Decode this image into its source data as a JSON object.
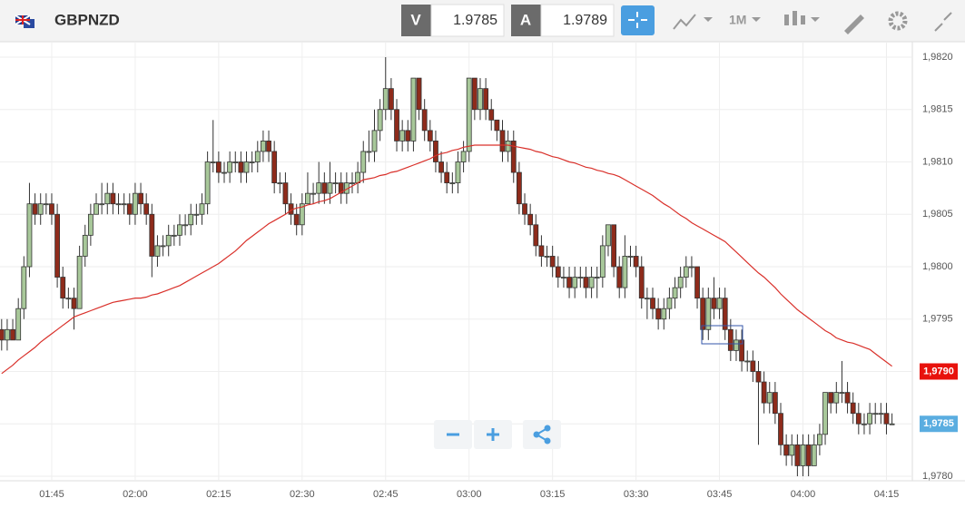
{
  "toolbar": {
    "symbol": "GBPNZD",
    "bid_label": "V",
    "bid": "1.9785",
    "ask_label": "A",
    "ask": "1.9789",
    "timeframe": "1M"
  },
  "chart_data": {
    "type": "candlestick",
    "categories": [
      null,
      null,
      null,
      null,
      null,
      null,
      null,
      null,
      null,
      "01:45",
      null,
      null,
      null,
      null,
      null,
      null,
      null,
      null,
      null,
      null,
      null,
      null,
      null,
      null,
      "02:00",
      null,
      null,
      null,
      null,
      null,
      null,
      null,
      null,
      null,
      null,
      null,
      null,
      null,
      null,
      "02:15",
      null,
      null,
      null,
      null,
      null,
      null,
      null,
      null,
      null,
      null,
      null,
      null,
      null,
      null,
      "02:30",
      null,
      null,
      null,
      null,
      null,
      null,
      null,
      null,
      null,
      null,
      null,
      null,
      null,
      null,
      "02:45",
      null,
      null,
      null,
      null,
      null,
      null,
      null,
      null,
      null,
      null,
      null,
      null,
      null,
      null,
      "03:00",
      null,
      null,
      null,
      null,
      null,
      null,
      null,
      null,
      null,
      null,
      null,
      null,
      null,
      null,
      "03:15",
      null,
      null,
      null,
      null,
      null,
      null,
      null,
      null,
      null,
      null,
      null,
      null,
      null,
      null,
      "03:30",
      null,
      null,
      null,
      null,
      null,
      null,
      null,
      null,
      null,
      null,
      null,
      null,
      null,
      null,
      "03:45",
      null,
      null,
      null,
      null,
      null,
      null,
      null,
      null,
      null,
      null,
      null,
      null,
      null,
      null,
      "04:00",
      null,
      null,
      null,
      null,
      null,
      null,
      null,
      null,
      null,
      null,
      null,
      null,
      null,
      null,
      "04:15",
      null
    ],
    "candles": [
      [
        1.9794,
        1.9795,
        1.9792,
        1.9793
      ],
      [
        1.9793,
        1.9795,
        1.9792,
        1.9794
      ],
      [
        1.9794,
        1.9795,
        1.9793,
        1.9793
      ],
      [
        1.9793,
        1.9797,
        1.9793,
        1.9796
      ],
      [
        1.9796,
        1.9801,
        1.9795,
        1.98
      ],
      [
        1.98,
        1.9808,
        1.9799,
        1.9806
      ],
      [
        1.9806,
        1.9807,
        1.9804,
        1.9805
      ],
      [
        1.9805,
        1.9807,
        1.9804,
        1.9806
      ],
      [
        1.9806,
        1.9807,
        1.9805,
        1.9806
      ],
      [
        1.9806,
        1.9807,
        1.9804,
        1.9805
      ],
      [
        1.9805,
        1.9806,
        1.9798,
        1.9799
      ],
      [
        1.9799,
        1.98,
        1.9796,
        1.9797
      ],
      [
        1.9797,
        1.9798,
        1.9796,
        1.9797
      ],
      [
        1.9797,
        1.9798,
        1.9794,
        1.9796
      ],
      [
        1.9796,
        1.9802,
        1.9796,
        1.9801
      ],
      [
        1.9801,
        1.9804,
        1.98,
        1.9803
      ],
      [
        1.9803,
        1.9806,
        1.9802,
        1.9805
      ],
      [
        1.9805,
        1.9807,
        1.9805,
        1.9806
      ],
      [
        1.9806,
        1.9808,
        1.9805,
        1.9806
      ],
      [
        1.9806,
        1.9808,
        1.9805,
        1.9807
      ],
      [
        1.9807,
        1.9808,
        1.9805,
        1.9806
      ],
      [
        1.9806,
        1.9807,
        1.9805,
        1.9806
      ],
      [
        1.9806,
        1.9807,
        1.9805,
        1.9806
      ],
      [
        1.9806,
        1.9807,
        1.9804,
        1.9805
      ],
      [
        1.9805,
        1.9808,
        1.9804,
        1.9807
      ],
      [
        1.9807,
        1.9808,
        1.9805,
        1.9806
      ],
      [
        1.9806,
        1.9807,
        1.9804,
        1.9805
      ],
      [
        1.9805,
        1.9806,
        1.9799,
        1.9801
      ],
      [
        1.9801,
        1.9803,
        1.98,
        1.9802
      ],
      [
        1.9802,
        1.9803,
        1.9801,
        1.9802
      ],
      [
        1.9802,
        1.9804,
        1.9801,
        1.9803
      ],
      [
        1.9803,
        1.9804,
        1.9802,
        1.9803
      ],
      [
        1.9803,
        1.9805,
        1.9802,
        1.9804
      ],
      [
        1.9804,
        1.9805,
        1.9803,
        1.9804
      ],
      [
        1.9804,
        1.9806,
        1.9803,
        1.9805
      ],
      [
        1.9805,
        1.9806,
        1.9804,
        1.9805
      ],
      [
        1.9805,
        1.9807,
        1.9804,
        1.9806
      ],
      [
        1.9806,
        1.9811,
        1.9805,
        1.981
      ],
      [
        1.981,
        1.9814,
        1.9809,
        1.981
      ],
      [
        1.981,
        1.9811,
        1.9808,
        1.9809
      ],
      [
        1.9809,
        1.981,
        1.9808,
        1.9809
      ],
      [
        1.9809,
        1.9811,
        1.9808,
        1.981
      ],
      [
        1.981,
        1.9811,
        1.9809,
        1.981
      ],
      [
        1.981,
        1.9811,
        1.9808,
        1.9809
      ],
      [
        1.9809,
        1.9811,
        1.9808,
        1.981
      ],
      [
        1.981,
        1.9811,
        1.9809,
        1.981
      ],
      [
        1.981,
        1.9812,
        1.9809,
        1.9811
      ],
      [
        1.9811,
        1.9813,
        1.981,
        1.9812
      ],
      [
        1.9812,
        1.9813,
        1.981,
        1.9811
      ],
      [
        1.9811,
        1.9812,
        1.9807,
        1.9808
      ],
      [
        1.9808,
        1.9809,
        1.9807,
        1.9808
      ],
      [
        1.9808,
        1.9809,
        1.9805,
        1.9806
      ],
      [
        1.9806,
        1.9807,
        1.9804,
        1.9805
      ],
      [
        1.9805,
        1.9806,
        1.9803,
        1.9804
      ],
      [
        1.9804,
        1.9807,
        1.9803,
        1.9806
      ],
      [
        1.9806,
        1.9809,
        1.9806,
        1.9807
      ],
      [
        1.9807,
        1.9808,
        1.9806,
        1.9807
      ],
      [
        1.9807,
        1.981,
        1.9806,
        1.9808
      ],
      [
        1.9808,
        1.9809,
        1.9806,
        1.9807
      ],
      [
        1.9807,
        1.981,
        1.9806,
        1.9808
      ],
      [
        1.9808,
        1.9809,
        1.9807,
        1.9808
      ],
      [
        1.9808,
        1.9809,
        1.9806,
        1.9807
      ],
      [
        1.9807,
        1.9809,
        1.9806,
        1.9808
      ],
      [
        1.9808,
        1.9809,
        1.9807,
        1.9808
      ],
      [
        1.9808,
        1.981,
        1.9807,
        1.9809
      ],
      [
        1.9809,
        1.9812,
        1.9808,
        1.9811
      ],
      [
        1.9811,
        1.9813,
        1.981,
        1.9811
      ],
      [
        1.9811,
        1.9815,
        1.981,
        1.9813
      ],
      [
        1.9813,
        1.9816,
        1.9812,
        1.9815
      ],
      [
        1.9815,
        1.982,
        1.9814,
        1.9817
      ],
      [
        1.9817,
        1.9818,
        1.9814,
        1.9815
      ],
      [
        1.9815,
        1.9816,
        1.9811,
        1.9812
      ],
      [
        1.9812,
        1.9814,
        1.9811,
        1.9813
      ],
      [
        1.9813,
        1.9814,
        1.9811,
        1.9812
      ],
      [
        1.9812,
        1.9818,
        1.9811,
        1.9818
      ],
      [
        1.9818,
        1.9818,
        1.9814,
        1.9815
      ],
      [
        1.9815,
        1.9816,
        1.9812,
        1.9813
      ],
      [
        1.9813,
        1.9814,
        1.9811,
        1.9812
      ],
      [
        1.9812,
        1.9813,
        1.9809,
        1.981
      ],
      [
        1.981,
        1.9811,
        1.9808,
        1.9809
      ],
      [
        1.9809,
        1.981,
        1.9807,
        1.9808
      ],
      [
        1.9808,
        1.9809,
        1.9807,
        1.9808
      ],
      [
        1.9808,
        1.9811,
        1.9807,
        1.981
      ],
      [
        1.981,
        1.9812,
        1.9809,
        1.9811
      ],
      [
        1.9811,
        1.9818,
        1.981,
        1.9818
      ],
      [
        1.9818,
        1.9818,
        1.9814,
        1.9815
      ],
      [
        1.9815,
        1.9818,
        1.9814,
        1.9817
      ],
      [
        1.9817,
        1.9818,
        1.9814,
        1.9815
      ],
      [
        1.9815,
        1.9816,
        1.9813,
        1.9814
      ],
      [
        1.9814,
        1.9814,
        1.9812,
        1.9813
      ],
      [
        1.9813,
        1.9814,
        1.981,
        1.9811
      ],
      [
        1.9811,
        1.9813,
        1.981,
        1.9812
      ],
      [
        1.9812,
        1.9813,
        1.9808,
        1.9809
      ],
      [
        1.9809,
        1.981,
        1.9805,
        1.9806
      ],
      [
        1.9806,
        1.9807,
        1.9804,
        1.9805
      ],
      [
        1.9805,
        1.9806,
        1.9803,
        1.9804
      ],
      [
        1.9804,
        1.9805,
        1.9801,
        1.9802
      ],
      [
        1.9802,
        1.9803,
        1.98,
        1.9801
      ],
      [
        1.9801,
        1.9802,
        1.98,
        1.9801
      ],
      [
        1.9801,
        1.9802,
        1.9799,
        1.98
      ],
      [
        1.98,
        1.9801,
        1.9798,
        1.9799
      ],
      [
        1.9799,
        1.98,
        1.9798,
        1.9799
      ],
      [
        1.9799,
        1.98,
        1.9797,
        1.9798
      ],
      [
        1.9798,
        1.98,
        1.9797,
        1.9799
      ],
      [
        1.9799,
        1.98,
        1.9798,
        1.9799
      ],
      [
        1.9799,
        1.98,
        1.9797,
        1.9798
      ],
      [
        1.9798,
        1.98,
        1.9797,
        1.9799
      ],
      [
        1.9799,
        1.98,
        1.9797,
        1.9799
      ],
      [
        1.9799,
        1.9803,
        1.9798,
        1.9802
      ],
      [
        1.9802,
        1.9804,
        1.9801,
        1.9804
      ],
      [
        1.9804,
        1.9804,
        1.9799,
        1.98
      ],
      [
        1.98,
        1.9801,
        1.9797,
        1.9798
      ],
      [
        1.9798,
        1.9803,
        1.9797,
        1.9801
      ],
      [
        1.9801,
        1.9802,
        1.98,
        1.9801
      ],
      [
        1.9801,
        1.9802,
        1.9799,
        1.98
      ],
      [
        1.98,
        1.9801,
        1.9796,
        1.9797
      ],
      [
        1.9797,
        1.9798,
        1.9795,
        1.9797
      ],
      [
        1.9797,
        1.9798,
        1.9795,
        1.9796
      ],
      [
        1.9796,
        1.9797,
        1.9794,
        1.9795
      ],
      [
        1.9795,
        1.9797,
        1.9794,
        1.9796
      ],
      [
        1.9796,
        1.9798,
        1.9795,
        1.9797
      ],
      [
        1.9797,
        1.9799,
        1.9796,
        1.9798
      ],
      [
        1.9798,
        1.98,
        1.9797,
        1.9799
      ],
      [
        1.9799,
        1.9801,
        1.9798,
        1.98
      ],
      [
        1.98,
        1.9801,
        1.9799,
        1.98
      ],
      [
        1.98,
        1.98,
        1.9796,
        1.9797
      ],
      [
        1.9797,
        1.9798,
        1.9793,
        1.9794
      ],
      [
        1.9794,
        1.9798,
        1.9793,
        1.9797
      ],
      [
        1.9797,
        1.9799,
        1.9795,
        1.9796
      ],
      [
        1.9796,
        1.9798,
        1.9795,
        1.9797
      ],
      [
        1.9797,
        1.9798,
        1.9793,
        1.9794
      ],
      [
        1.9794,
        1.9795,
        1.9791,
        1.9792
      ],
      [
        1.9792,
        1.9794,
        1.9791,
        1.9793
      ],
      [
        1.9793,
        1.9794,
        1.979,
        1.9791
      ],
      [
        1.9791,
        1.9792,
        1.979,
        1.9791
      ],
      [
        1.9791,
        1.9792,
        1.9789,
        1.979
      ],
      [
        1.979,
        1.9791,
        1.9783,
        1.9789
      ],
      [
        1.9789,
        1.979,
        1.9786,
        1.9787
      ],
      [
        1.9787,
        1.9789,
        1.9786,
        1.9788
      ],
      [
        1.9788,
        1.9789,
        1.9785,
        1.9786
      ],
      [
        1.9786,
        1.9787,
        1.9782,
        1.9783
      ],
      [
        1.9783,
        1.9784,
        1.9781,
        1.9782
      ],
      [
        1.9782,
        1.9784,
        1.9781,
        1.9783
      ],
      [
        1.9783,
        1.9784,
        1.978,
        1.9781
      ],
      [
        1.9781,
        1.9784,
        1.978,
        1.9783
      ],
      [
        1.9783,
        1.9784,
        1.978,
        1.9781
      ],
      [
        1.9781,
        1.9784,
        1.9781,
        1.9783
      ],
      [
        1.9783,
        1.9785,
        1.9782,
        1.9784
      ],
      [
        1.9784,
        1.9788,
        1.9783,
        1.9788
      ],
      [
        1.9788,
        1.9788,
        1.9786,
        1.9787
      ],
      [
        1.9787,
        1.9789,
        1.9786,
        1.9788
      ],
      [
        1.9788,
        1.9791,
        1.9787,
        1.9788
      ],
      [
        1.9788,
        1.9789,
        1.9786,
        1.9787
      ],
      [
        1.9787,
        1.9788,
        1.9785,
        1.9786
      ],
      [
        1.9786,
        1.9787,
        1.9784,
        1.9785
      ],
      [
        1.9785,
        1.9786,
        1.9784,
        1.9785
      ],
      [
        1.9785,
        1.9787,
        1.9784,
        1.9786
      ],
      [
        1.9786,
        1.9787,
        1.9785,
        1.9786
      ],
      [
        1.9786,
        1.9787,
        1.9785,
        1.9786
      ],
      [
        1.9786,
        1.9787,
        1.9784,
        1.9785
      ],
      [
        1.9785,
        1.9786,
        1.9785,
        1.9785
      ]
    ],
    "up_color": "#a8c89a",
    "down_color": "#8e2b1b",
    "series": [
      {
        "color": "#d9302a",
        "values": [
          1.97898,
          1.97902,
          1.97906,
          1.97911,
          1.97915,
          1.97919,
          1.97923,
          1.97928,
          1.97932,
          1.97936,
          1.9794,
          1.97944,
          1.97948,
          1.97952,
          1.97954,
          1.97956,
          1.97958,
          1.9796,
          1.97962,
          1.97964,
          1.97966,
          1.97967,
          1.97968,
          1.97969,
          1.9797,
          1.9797,
          1.97971,
          1.97973,
          1.97974,
          1.97976,
          1.97978,
          1.9798,
          1.97982,
          1.97985,
          1.97988,
          1.97991,
          1.97994,
          1.97997,
          1.98,
          1.98003,
          1.98007,
          1.98011,
          1.98015,
          1.9802,
          1.98025,
          1.98029,
          1.98033,
          1.98037,
          1.98041,
          1.98044,
          1.98047,
          1.9805,
          1.98054,
          1.98056,
          1.98057,
          1.98059,
          1.9806,
          1.98062,
          1.98063,
          1.98065,
          1.98068,
          1.98071,
          1.98074,
          1.98077,
          1.9808,
          1.98083,
          1.98084,
          1.98085,
          1.98087,
          1.98088,
          1.9809,
          1.98091,
          1.98093,
          1.98095,
          1.98097,
          1.98099,
          1.98101,
          1.98103,
          1.98106,
          1.98108,
          1.98109,
          1.98111,
          1.98112,
          1.98114,
          1.98115,
          1.98116,
          1.98116,
          1.98116,
          1.98116,
          1.98116,
          1.98116,
          1.98116,
          1.98115,
          1.98114,
          1.98113,
          1.98112,
          1.9811,
          1.98109,
          1.98107,
          1.98105,
          1.98104,
          1.98102,
          1.981,
          1.98099,
          1.98097,
          1.98095,
          1.98094,
          1.98092,
          1.98091,
          1.98089,
          1.98088,
          1.98086,
          1.98083,
          1.9808,
          1.98077,
          1.98074,
          1.98071,
          1.98068,
          1.98064,
          1.9806,
          1.98057,
          1.98053,
          1.98049,
          1.98046,
          1.98042,
          1.98039,
          1.98036,
          1.98033,
          1.9803,
          1.98027,
          1.98024,
          1.98019,
          1.98014,
          1.98009,
          1.98004,
          1.97999,
          1.97994,
          1.9799,
          1.97985,
          1.9798,
          1.97974,
          1.97969,
          1.97964,
          1.97959,
          1.97955,
          1.97951,
          1.97947,
          1.97943,
          1.97939,
          1.97936,
          1.97932,
          1.9793,
          1.97928,
          1.97927,
          1.97925,
          1.97923,
          1.97921,
          1.97917,
          1.97913,
          1.97909,
          1.97905
        ]
      }
    ],
    "ylim": [
      1.978,
      1.982
    ],
    "yticks": [
      {
        "value": 1.978,
        "label": "1,9780"
      },
      {
        "value": 1.9785,
        "label": "1,9785"
      },
      {
        "value": 1.979,
        "label": "1,9790"
      },
      {
        "value": 1.9795,
        "label": "1,9795"
      },
      {
        "value": 1.98,
        "label": "1,9800"
      },
      {
        "value": 1.9805,
        "label": "1,9805"
      },
      {
        "value": 1.981,
        "label": "1,9810"
      },
      {
        "value": 1.9815,
        "label": "1,9815"
      },
      {
        "value": 1.982,
        "label": "1,9820"
      }
    ],
    "price_labels": [
      {
        "value": 1.979,
        "label": "1,9790",
        "color": "#e8120c"
      },
      {
        "value": 1.9785,
        "label": "1,9785",
        "color": "#5aade0"
      }
    ],
    "grid": true
  }
}
